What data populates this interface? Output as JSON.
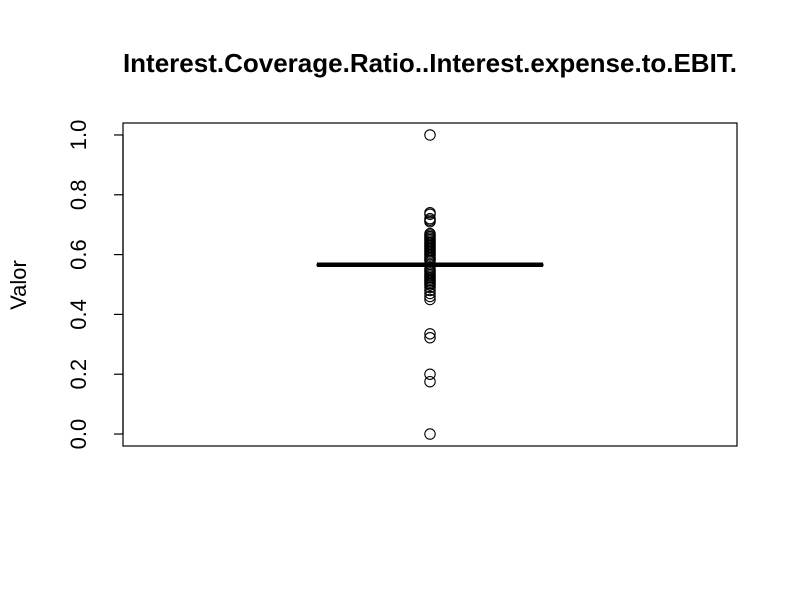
{
  "chart_data": {
    "type": "boxplot",
    "title": "Interest.Coverage.Ratio..Interest.expense.to.EBIT.",
    "xlabel": "",
    "ylabel": "Valor",
    "ylim": [
      -0.04,
      1.04
    ],
    "y_ticks": [
      0.0,
      0.2,
      0.4,
      0.6,
      0.8,
      1.0
    ],
    "y_tick_labels": [
      "0.0",
      "0.2",
      "0.4",
      "0.6",
      "0.8",
      "1.0"
    ],
    "grid": false,
    "box": {
      "min": 0.555,
      "q1": 0.563,
      "median": 0.566,
      "q3": 0.568,
      "max": 0.578
    },
    "outliers": [
      1.0,
      0.74,
      0.735,
      0.72,
      0.715,
      0.71,
      0.67,
      0.665,
      0.66,
      0.655,
      0.65,
      0.645,
      0.64,
      0.635,
      0.63,
      0.625,
      0.62,
      0.615,
      0.61,
      0.605,
      0.6,
      0.595,
      0.59,
      0.585,
      0.58,
      0.553,
      0.548,
      0.543,
      0.538,
      0.533,
      0.528,
      0.523,
      0.518,
      0.513,
      0.508,
      0.503,
      0.498,
      0.49,
      0.48,
      0.47,
      0.46,
      0.45,
      0.335,
      0.322,
      0.2,
      0.175,
      0.0
    ]
  }
}
